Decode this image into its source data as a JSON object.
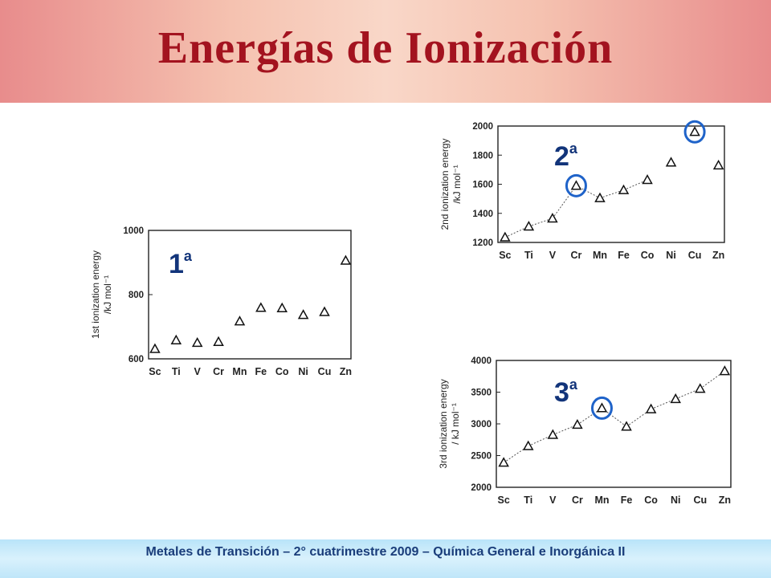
{
  "title": "Energías de Ionización",
  "footer": "Metales de Transición – 2° cuatrimestre 2009 – Química General e Inorgánica II",
  "colors": {
    "title": "#a3131f",
    "footer_text": "#1a3d7a",
    "ordinal": "#12347a",
    "highlight": "#1f63c9"
  },
  "chart_data": [
    {
      "type": "scatter",
      "label": {
        "number": "1",
        "suffix": "a"
      },
      "ylabel_line1": "1st ionization energy",
      "ylabel_line2": "/kJ mol⁻¹",
      "categories": [
        "Sc",
        "Ti",
        "V",
        "Cr",
        "Mn",
        "Fe",
        "Co",
        "Ni",
        "Cu",
        "Zn"
      ],
      "values": [
        631,
        658,
        650,
        653,
        717,
        759,
        758,
        737,
        746,
        906
      ],
      "ylim": [
        600,
        1000
      ],
      "yticks": [
        600,
        800,
        1000
      ],
      "ytick_labels": [
        "600",
        "800",
        "1000"
      ],
      "connected": [],
      "highlighted": []
    },
    {
      "type": "scatter",
      "label": {
        "number": "2",
        "suffix": "a"
      },
      "ylabel_line1": "2nd ionization energy",
      "ylabel_line2": "/kJ mol⁻¹",
      "categories": [
        "Sc",
        "Ti",
        "V",
        "Cr",
        "Mn",
        "Fe",
        "Co",
        "Ni",
        "Cu",
        "Zn"
      ],
      "values": [
        1235,
        1310,
        1365,
        1590,
        1505,
        1560,
        1630,
        1750,
        1960,
        1730
      ],
      "ylim": [
        1200,
        2000
      ],
      "yticks": [
        1200,
        1400,
        1600,
        1800,
        2000
      ],
      "ytick_labels": [
        "1200",
        "1400",
        "1600",
        "1800",
        "2000"
      ],
      "connected": [
        [
          0,
          1
        ],
        [
          1,
          2
        ],
        [
          2,
          3
        ],
        [
          3,
          4
        ],
        [
          4,
          5
        ],
        [
          5,
          6
        ]
      ],
      "highlighted": [
        "Cr",
        "Cu"
      ]
    },
    {
      "type": "scatter",
      "label": {
        "number": "3",
        "suffix": "a"
      },
      "ylabel_line1": "3rd ionization energy",
      "ylabel_line2": "/ kJ mol⁻¹",
      "categories": [
        "Sc",
        "Ti",
        "V",
        "Cr",
        "Mn",
        "Fe",
        "Co",
        "Ni",
        "Cu",
        "Zn"
      ],
      "values": [
        2389,
        2650,
        2828,
        2987,
        3248,
        2957,
        3232,
        3393,
        3554,
        3833
      ],
      "ylim": [
        2000,
        4000
      ],
      "yticks": [
        2000,
        2500,
        3000,
        3500,
        4000
      ],
      "ytick_labels": [
        "2000",
        "2500",
        "3000",
        "3500",
        "4000"
      ],
      "connected": [
        [
          0,
          1
        ],
        [
          1,
          2
        ],
        [
          2,
          3
        ],
        [
          3,
          4
        ],
        [
          4,
          5
        ],
        [
          5,
          6
        ],
        [
          6,
          7
        ],
        [
          7,
          8
        ],
        [
          8,
          9
        ]
      ],
      "highlighted": [
        "Mn"
      ]
    }
  ]
}
